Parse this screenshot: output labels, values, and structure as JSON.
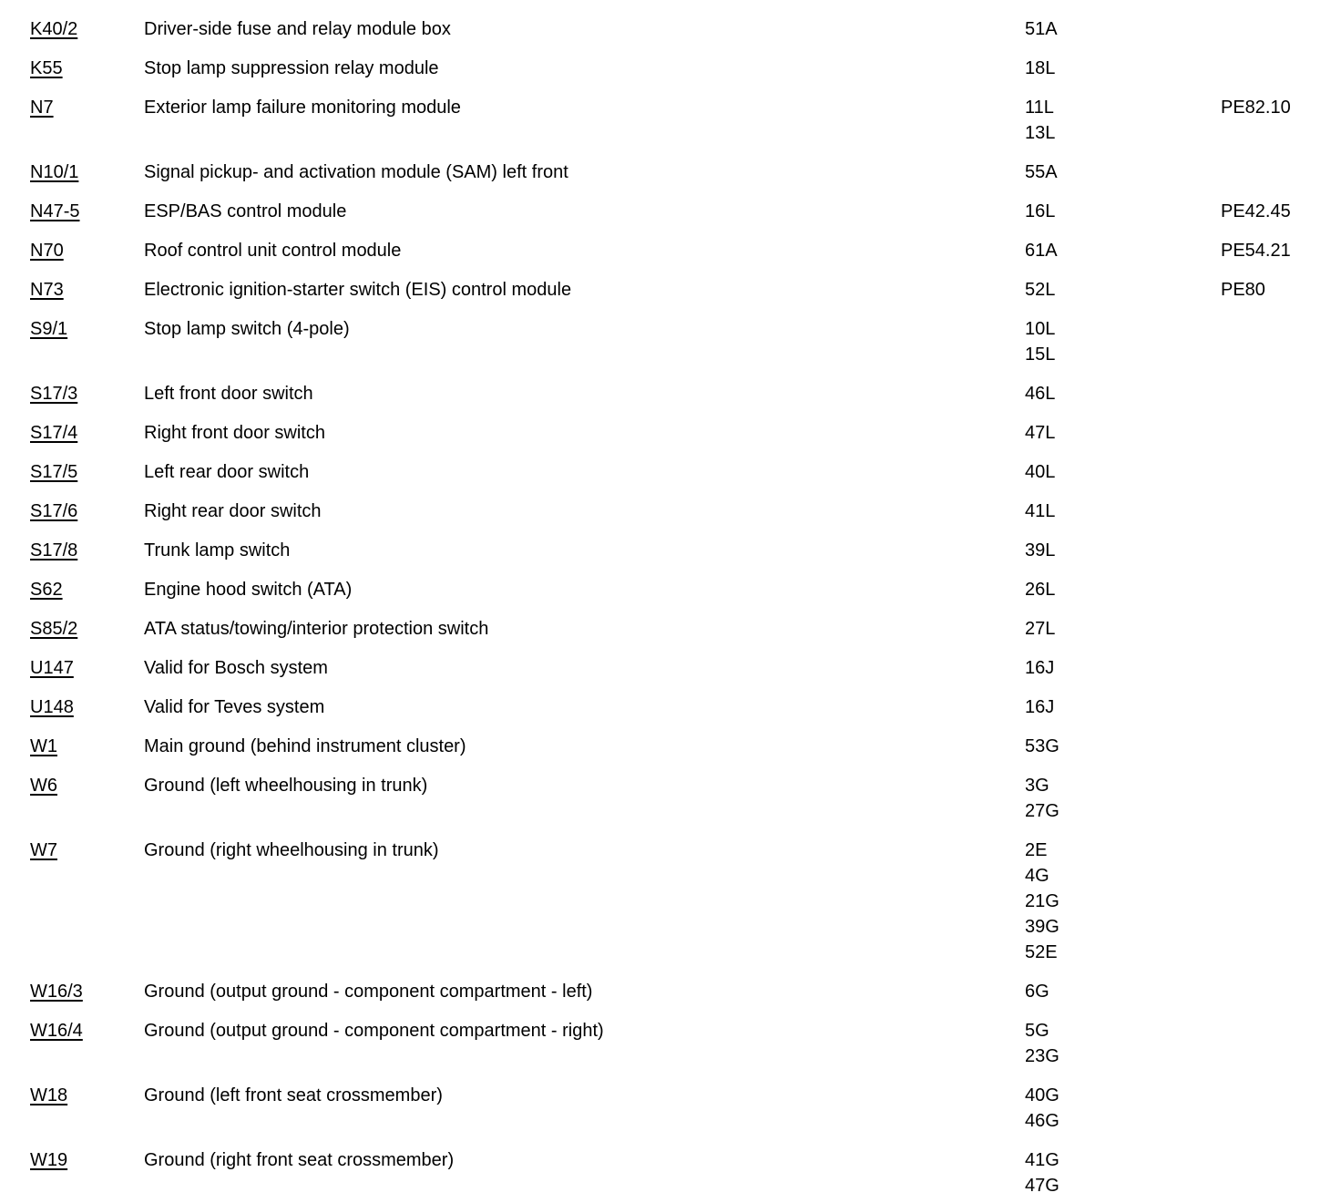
{
  "page": {
    "background_color": "#ffffff",
    "text_color": "#000000"
  },
  "legend_rows": [
    {
      "code": "K40/2",
      "description": "Driver-side fuse and relay module box",
      "locations": [
        "51A"
      ],
      "pe_ref": ""
    },
    {
      "code": "K55",
      "description": "Stop lamp suppression relay module",
      "locations": [
        "18L"
      ],
      "pe_ref": ""
    },
    {
      "code": "N7",
      "description": "Exterior lamp failure monitoring module",
      "locations": [
        "11L",
        "13L"
      ],
      "pe_ref": "PE82.10"
    },
    {
      "code": "N10/1",
      "description": "Signal pickup- and activation module (SAM) left front",
      "locations": [
        "55A"
      ],
      "pe_ref": ""
    },
    {
      "code": "N47-5",
      "description": "ESP/BAS control module",
      "locations": [
        "16L"
      ],
      "pe_ref": "PE42.45"
    },
    {
      "code": "N70",
      "description": "Roof control unit control module",
      "locations": [
        "61A"
      ],
      "pe_ref": "PE54.21"
    },
    {
      "code": "N73",
      "description": "Electronic ignition-starter switch (EIS) control module",
      "locations": [
        "52L"
      ],
      "pe_ref": "PE80"
    },
    {
      "code": "S9/1",
      "description": "Stop lamp switch (4-pole)",
      "locations": [
        "10L",
        "15L"
      ],
      "pe_ref": ""
    },
    {
      "code": "S17/3",
      "description": "Left front door switch",
      "locations": [
        "46L"
      ],
      "pe_ref": ""
    },
    {
      "code": "S17/4",
      "description": "Right front door switch",
      "locations": [
        "47L"
      ],
      "pe_ref": ""
    },
    {
      "code": "S17/5",
      "description": "Left rear door switch",
      "locations": [
        "40L"
      ],
      "pe_ref": ""
    },
    {
      "code": "S17/6",
      "description": "Right rear door switch",
      "locations": [
        "41L"
      ],
      "pe_ref": ""
    },
    {
      "code": "S17/8",
      "description": "Trunk lamp switch",
      "locations": [
        "39L"
      ],
      "pe_ref": ""
    },
    {
      "code": "S62",
      "description": "Engine hood switch (ATA)",
      "locations": [
        "26L"
      ],
      "pe_ref": ""
    },
    {
      "code": "S85/2",
      "description": "ATA status/towing/interior protection switch",
      "locations": [
        "27L"
      ],
      "pe_ref": ""
    },
    {
      "code": "U147",
      "description": "Valid for Bosch system",
      "locations": [
        "16J"
      ],
      "pe_ref": ""
    },
    {
      "code": "U148",
      "description": "Valid for Teves system",
      "locations": [
        "16J"
      ],
      "pe_ref": ""
    },
    {
      "code": "W1",
      "description": "Main ground (behind instrument cluster)",
      "locations": [
        "53G"
      ],
      "pe_ref": ""
    },
    {
      "code": "W6",
      "description": "Ground (left wheelhousing in trunk)",
      "locations": [
        "3G",
        "27G"
      ],
      "pe_ref": ""
    },
    {
      "code": "W7",
      "description": "Ground (right wheelhousing in trunk)",
      "locations": [
        "2E",
        "4G",
        "21G",
        "39G",
        "52E"
      ],
      "pe_ref": ""
    },
    {
      "code": "W16/3",
      "description": "Ground (output ground - component compartment - left)",
      "locations": [
        "6G"
      ],
      "pe_ref": ""
    },
    {
      "code": "W16/4",
      "description": "Ground (output ground - component compartment - right)",
      "locations": [
        "5G",
        "23G"
      ],
      "pe_ref": ""
    },
    {
      "code": "W18",
      "description": "Ground (left front seat crossmember)",
      "locations": [
        "40G",
        "46G"
      ],
      "pe_ref": ""
    },
    {
      "code": "W19",
      "description": "Ground (right front seat crossmember)",
      "locations": [
        "41G",
        "47G"
      ],
      "pe_ref": ""
    }
  ]
}
